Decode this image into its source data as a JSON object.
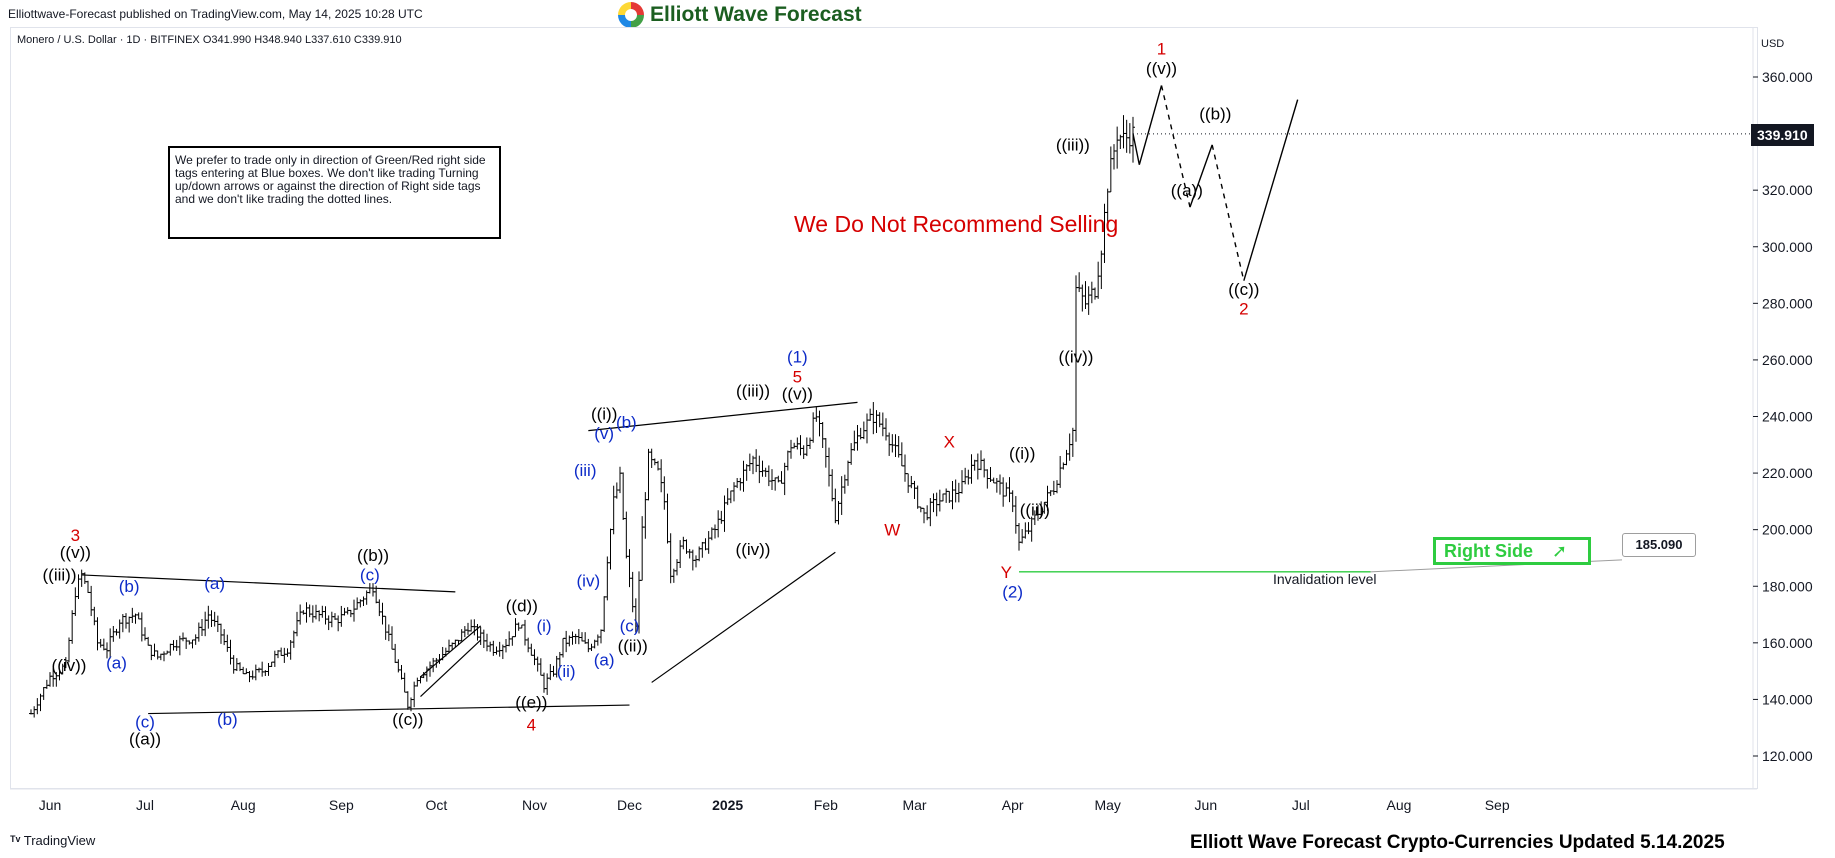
{
  "header": {
    "publish_info": "Elliottwave-Forecast published on TradingView.com, May 14, 2025 10:28 UTC",
    "brand_name": "Elliott Wave Forecast",
    "symbol_line": "Monero / U.S. Dollar · 1D · BITFINEX  O341.990  H348.940  L337.610  C339.910"
  },
  "note": "We prefer to trade only in direction of Green/Red right side tags entering at Blue boxes. We don't like trading Turning up/down arrows or against the direction of Right side tags and we don't like trading the dotted lines.",
  "center_text": "We Do Not Recommend Selling",
  "currency": "USD",
  "last_price": "339.910",
  "right_side_label": "Right Side",
  "invalidation": {
    "price": "185.090",
    "label": "Invalidation level"
  },
  "footer": {
    "tv_brand": "TradingView",
    "title": "Elliott Wave Forecast Crypto-Currencies Updated 5.14.2025"
  },
  "colors": {
    "wave_red": "#d50000",
    "wave_blue": "#0d2bc8",
    "wave_black": "#000000",
    "green": "#2ecc40"
  },
  "chart_data": {
    "type": "ohlc-bar",
    "y_ticks": [
      "360.000",
      "340.000",
      "320.000",
      "300.000",
      "280.000",
      "260.000",
      "240.000",
      "220.000",
      "200.000",
      "180.000",
      "160.000",
      "140.000",
      "120.000"
    ],
    "ylim": [
      110,
      372
    ],
    "x_ticks": [
      "Jun",
      "Jul",
      "Aug",
      "Sep",
      "Oct",
      "Nov",
      "Dec",
      "2025",
      "Feb",
      "Mar",
      "Apr",
      "May",
      "Jun",
      "Jul",
      "Aug",
      "Sep"
    ],
    "x_tick_positions_days": [
      6,
      36,
      67,
      98,
      128,
      159,
      189,
      220,
      251,
      279,
      310,
      340,
      371,
      401,
      432,
      463
    ],
    "last_bar_day": 348,
    "price_path": [
      [
        0,
        135
      ],
      [
        6,
        148
      ],
      [
        11,
        152
      ],
      [
        14,
        178
      ],
      [
        16,
        184
      ],
      [
        18,
        178
      ],
      [
        21,
        160
      ],
      [
        24,
        158
      ],
      [
        28,
        168
      ],
      [
        33,
        170
      ],
      [
        37,
        158
      ],
      [
        40,
        155
      ],
      [
        45,
        160
      ],
      [
        52,
        162
      ],
      [
        56,
        170
      ],
      [
        60,
        163
      ],
      [
        64,
        152
      ],
      [
        68,
        148
      ],
      [
        73,
        150
      ],
      [
        77,
        155
      ],
      [
        81,
        158
      ],
      [
        86,
        172
      ],
      [
        90,
        170
      ],
      [
        96,
        168
      ],
      [
        100,
        170
      ],
      [
        104,
        175
      ],
      [
        108,
        180
      ],
      [
        112,
        165
      ],
      [
        116,
        150
      ],
      [
        119,
        138
      ],
      [
        122,
        148
      ],
      [
        126,
        152
      ],
      [
        130,
        156
      ],
      [
        134,
        160
      ],
      [
        138,
        166
      ],
      [
        142,
        162
      ],
      [
        146,
        158
      ],
      [
        150,
        160
      ],
      [
        154,
        167
      ],
      [
        158,
        157
      ],
      [
        162,
        145
      ],
      [
        165,
        150
      ],
      [
        168,
        160
      ],
      [
        172,
        162
      ],
      [
        176,
        158
      ],
      [
        180,
        165
      ],
      [
        182,
        190
      ],
      [
        184,
        210
      ],
      [
        186,
        218
      ],
      [
        188,
        190
      ],
      [
        191,
        165
      ],
      [
        193,
        200
      ],
      [
        195,
        225
      ],
      [
        198,
        220
      ],
      [
        200,
        210
      ],
      [
        202,
        185
      ],
      [
        206,
        195
      ],
      [
        210,
        190
      ],
      [
        216,
        200
      ],
      [
        222,
        215
      ],
      [
        228,
        225
      ],
      [
        232,
        220
      ],
      [
        236,
        215
      ],
      [
        240,
        230
      ],
      [
        244,
        228
      ],
      [
        248,
        240
      ],
      [
        251,
        225
      ],
      [
        254,
        205
      ],
      [
        258,
        225
      ],
      [
        262,
        235
      ],
      [
        266,
        240
      ],
      [
        270,
        235
      ],
      [
        274,
        225
      ],
      [
        278,
        215
      ],
      [
        282,
        205
      ],
      [
        286,
        210
      ],
      [
        290,
        212
      ],
      [
        294,
        215
      ],
      [
        298,
        225
      ],
      [
        302,
        220
      ],
      [
        306,
        215
      ],
      [
        310,
        210
      ],
      [
        312,
        195
      ],
      [
        315,
        200
      ],
      [
        319,
        208
      ],
      [
        323,
        215
      ],
      [
        326,
        225
      ],
      [
        329,
        235
      ],
      [
        330,
        285
      ],
      [
        333,
        280
      ],
      [
        336,
        285
      ],
      [
        338,
        300
      ],
      [
        340,
        322
      ],
      [
        343,
        340
      ],
      [
        345,
        338
      ],
      [
        348,
        340
      ]
    ],
    "projection": [
      {
        "from": [
          348,
          340
        ],
        "to": [
          350,
          329
        ],
        "style": "solid"
      },
      {
        "from": [
          350,
          329
        ],
        "to": [
          357,
          357
        ],
        "style": "solid"
      },
      {
        "from": [
          357,
          357
        ],
        "to": [
          366,
          314
        ],
        "style": "dashed"
      },
      {
        "from": [
          366,
          314
        ],
        "to": [
          373,
          336
        ],
        "style": "solid"
      },
      {
        "from": [
          373,
          336
        ],
        "to": [
          383,
          288
        ],
        "style": "dashed"
      },
      {
        "from": [
          383,
          288
        ],
        "to": [
          400,
          352
        ],
        "style": "solid"
      }
    ],
    "trendlines": [
      {
        "from": [
          16,
          184
        ],
        "to": [
          134,
          178
        ]
      },
      {
        "from": [
          37,
          135
        ],
        "to": [
          189,
          138
        ]
      },
      {
        "from": [
          123,
          141
        ],
        "to": [
          142,
          161
        ]
      },
      {
        "from": [
          123,
          148
        ],
        "to": [
          142,
          166
        ]
      },
      {
        "from": [
          176,
          235
        ],
        "to": [
          261,
          245
        ]
      },
      {
        "from": [
          196,
          146
        ],
        "to": [
          254,
          192
        ]
      }
    ],
    "invalidation_level": 185.09,
    "invalidation_x": [
      312,
      423
    ],
    "wave_labels": [
      {
        "text": "3",
        "day": 14,
        "price": 196,
        "color": "red"
      },
      {
        "text": "((v))",
        "day": 14,
        "price": 190,
        "color": "black"
      },
      {
        "text": "((iii))",
        "day": 9,
        "price": 182,
        "color": "black"
      },
      {
        "text": "((iv))",
        "day": 12,
        "price": 150,
        "color": "black"
      },
      {
        "text": "(b)",
        "day": 31,
        "price": 178,
        "color": "blue"
      },
      {
        "text": "(a)",
        "day": 27,
        "price": 151,
        "color": "blue"
      },
      {
        "text": "(c)",
        "day": 36,
        "price": 130,
        "color": "blue"
      },
      {
        "text": "((a))",
        "day": 36,
        "price": 124,
        "color": "black"
      },
      {
        "text": "(a)",
        "day": 58,
        "price": 179,
        "color": "blue"
      },
      {
        "text": "(b)",
        "day": 62,
        "price": 131,
        "color": "blue"
      },
      {
        "text": "((b))",
        "day": 108,
        "price": 189,
        "color": "black"
      },
      {
        "text": "(c)",
        "day": 107,
        "price": 182,
        "color": "blue"
      },
      {
        "text": "((c))",
        "day": 119,
        "price": 131,
        "color": "black"
      },
      {
        "text": "((d))",
        "day": 155,
        "price": 171,
        "color": "black"
      },
      {
        "text": "((e))",
        "day": 158,
        "price": 137,
        "color": "black"
      },
      {
        "text": "4",
        "day": 158,
        "price": 129,
        "color": "red"
      },
      {
        "text": "(i)",
        "day": 162,
        "price": 164,
        "color": "blue"
      },
      {
        "text": "(ii)",
        "day": 169,
        "price": 148,
        "color": "blue"
      },
      {
        "text": "(iii)",
        "day": 175,
        "price": 219,
        "color": "blue"
      },
      {
        "text": "(iv)",
        "day": 176,
        "price": 180,
        "color": "blue"
      },
      {
        "text": "((i))",
        "day": 181,
        "price": 239,
        "color": "black"
      },
      {
        "text": "(v)",
        "day": 181,
        "price": 232,
        "color": "blue"
      },
      {
        "text": "(b)",
        "day": 188,
        "price": 236,
        "color": "blue"
      },
      {
        "text": "(a)",
        "day": 181,
        "price": 152,
        "color": "blue"
      },
      {
        "text": "(c)",
        "day": 189,
        "price": 164,
        "color": "blue"
      },
      {
        "text": "((ii))",
        "day": 190,
        "price": 157,
        "color": "black"
      },
      {
        "text": "((iii))",
        "day": 228,
        "price": 247,
        "color": "black"
      },
      {
        "text": "(1)",
        "day": 242,
        "price": 259,
        "color": "blue"
      },
      {
        "text": "5",
        "day": 242,
        "price": 252,
        "color": "red"
      },
      {
        "text": "((v))",
        "day": 242,
        "price": 246,
        "color": "black"
      },
      {
        "text": "((iv))",
        "day": 228,
        "price": 191,
        "color": "black"
      },
      {
        "text": "W",
        "day": 272,
        "price": 198,
        "color": "red"
      },
      {
        "text": "X",
        "day": 290,
        "price": 229,
        "color": "red"
      },
      {
        "text": "Y",
        "day": 308,
        "price": 183,
        "color": "red"
      },
      {
        "text": "(2)",
        "day": 310,
        "price": 176,
        "color": "blue"
      },
      {
        "text": "((i))",
        "day": 313,
        "price": 225,
        "color": "black"
      },
      {
        "text": "((ii))",
        "day": 317,
        "price": 205,
        "color": "black"
      },
      {
        "text": "((iii))",
        "day": 329,
        "price": 334,
        "color": "black"
      },
      {
        "text": "((iv))",
        "day": 330,
        "price": 259,
        "color": "black"
      },
      {
        "text": "1",
        "day": 357,
        "price": 368,
        "color": "red"
      },
      {
        "text": "((v))",
        "day": 357,
        "price": 361,
        "color": "black"
      },
      {
        "text": "((a))",
        "day": 365,
        "price": 318,
        "color": "black"
      },
      {
        "text": "((b))",
        "day": 374,
        "price": 345,
        "color": "black"
      },
      {
        "text": "((c))",
        "day": 383,
        "price": 283,
        "color": "black"
      },
      {
        "text": "2",
        "day": 383,
        "price": 276,
        "color": "red"
      }
    ]
  }
}
